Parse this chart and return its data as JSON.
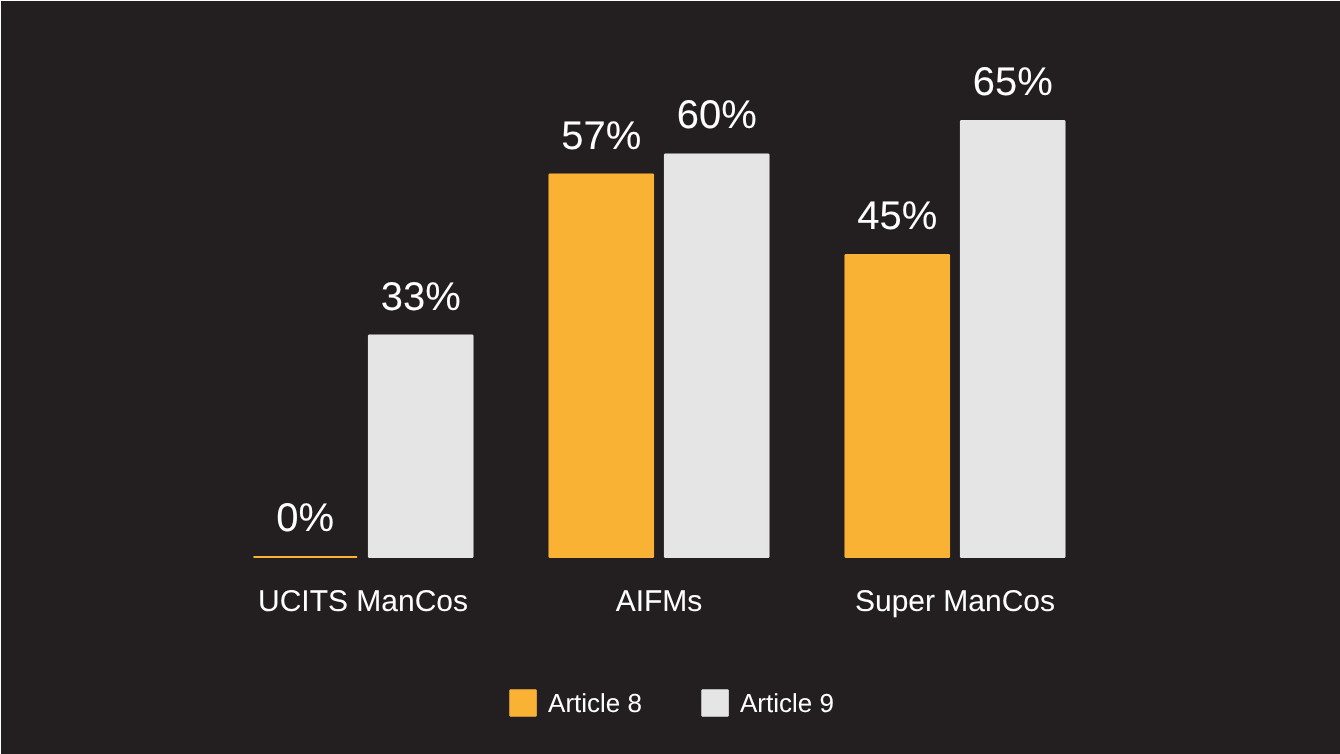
{
  "chart_data": {
    "type": "bar",
    "categories": [
      "UCITS ManCos",
      "AIFMs",
      "Super ManCos"
    ],
    "series": [
      {
        "name": "Article 8",
        "color": "#f9b233",
        "values": [
          0,
          57,
          45
        ],
        "value_labels": [
          "0%",
          "57%",
          "45%"
        ]
      },
      {
        "name": "Article 9",
        "color": "#e5e5e5",
        "values": [
          33,
          60,
          65
        ],
        "value_labels": [
          "33%",
          "60%",
          "65%"
        ]
      }
    ],
    "legend": "bottom"
  }
}
